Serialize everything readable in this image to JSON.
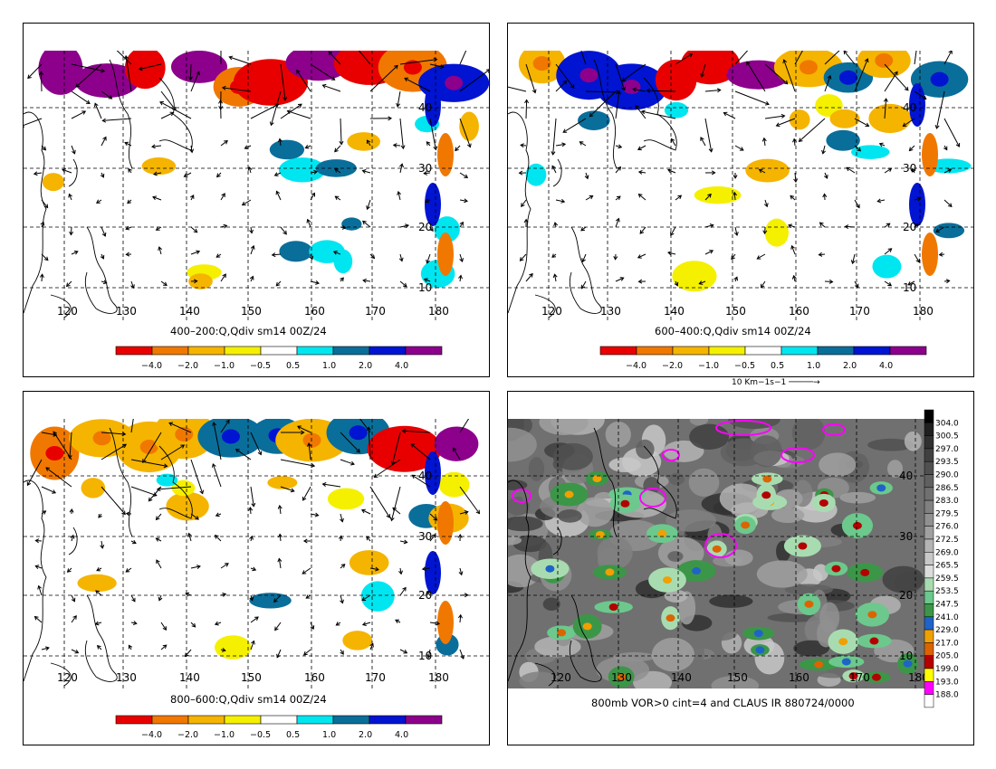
{
  "panels": [
    {
      "caption": "400–200:Q,Qdiv sm14 00Z/24"
    },
    {
      "caption": "600–400:Q,Qdiv sm14 00Z/24"
    },
    {
      "caption": "800–600:Q,Qdiv sm14 00Z/24"
    },
    {
      "caption": "800mb VOR>0 cint=4 and CLAUS IR 880724/0000"
    }
  ],
  "lon_labels": [
    "120",
    "130",
    "140",
    "150",
    "160",
    "170",
    "180"
  ],
  "lat_labels": [
    "10",
    "20",
    "30",
    "40"
  ],
  "div_colorbar": {
    "colors": [
      "#e80000",
      "#f07800",
      "#f5b400",
      "#f5f000",
      "#ffffff",
      "#00e6f0",
      "#0a6e9a",
      "#0014d2",
      "#8c008c"
    ],
    "labels": [
      "−4.0",
      "−2.0",
      "−1.0",
      "−0.5",
      "0.5",
      "1.0",
      "2.0",
      "4.0"
    ]
  },
  "reference_vector": "10 Km−1s−1",
  "ir_colorbar": {
    "labels": [
      "304.0",
      "300.5",
      "297.0",
      "293.5",
      "290.0",
      "286.5",
      "283.0",
      "279.5",
      "276.0",
      "272.5",
      "269.0",
      "265.5",
      "259.5",
      "253.5",
      "247.5",
      "241.0",
      "229.0",
      "217.0",
      "205.0",
      "199.0",
      "193.0",
      "188.0"
    ],
    "colors": [
      "#000000",
      "#202020",
      "#303030",
      "#404040",
      "#505050",
      "#606060",
      "#707070",
      "#808080",
      "#909090",
      "#a0a0a0",
      "#b4b4b4",
      "#c8c8c8",
      "#dcdcdc",
      "#a8dcb0",
      "#6cc88c",
      "#3c9648",
      "#1e64c8",
      "#f0a000",
      "#dc6400",
      "#b40000",
      "#ffff00",
      "#ff00ff",
      "#ffffff"
    ]
  },
  "colors": {
    "vorticity_contour": "#ff00ff",
    "grid": "#000000",
    "coast": "#000000"
  }
}
